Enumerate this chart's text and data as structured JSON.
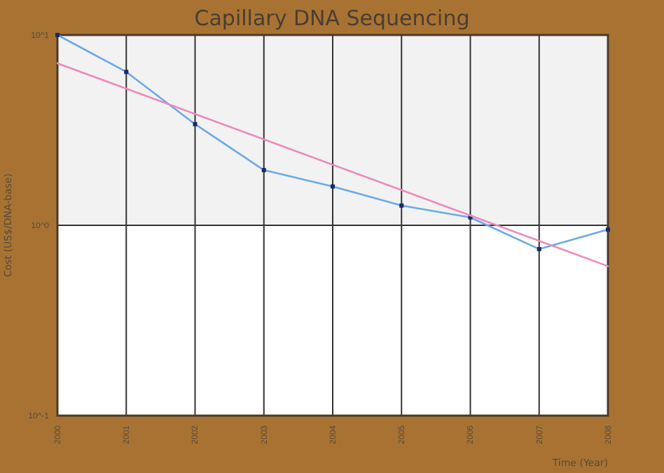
{
  "chart_data": {
    "type": "line",
    "title": "Capillary DNA Sequencing",
    "xlabel": "Time (Year)",
    "ylabel": "Cost (US$/DNA-base)",
    "x": [
      2000,
      2001,
      2002,
      2003,
      2004,
      2005,
      2006,
      2007,
      2008
    ],
    "series": [
      {
        "color": "#6aaae8",
        "values": [
          10,
          6.4,
          3.4,
          1.95,
          1.6,
          1.27,
          1.1,
          0.75,
          0.95
        ],
        "marker": "square"
      },
      {
        "type": "line",
        "color": "#ee88bb",
        "x": [
          2000,
          2008
        ],
        "values": [
          7.1,
          0.61
        ],
        "marker": "none"
      }
    ],
    "log": true,
    "xlim": [
      2000,
      2008
    ],
    "xticks": [
      2000,
      2001,
      2002,
      2003,
      2004,
      2005,
      2006,
      2007,
      2008
    ],
    "ylim": [
      0.1,
      10
    ],
    "yticks": [
      {
        "value": 10,
        "label": "10^1"
      },
      {
        "value": 1,
        "label": "10^0"
      },
      {
        "value": 0.1,
        "label": "10^-1"
      }
    ],
    "grid": true,
    "bands": [
      {
        "axis": "y",
        "from": 1,
        "to": 10,
        "color": "#f2f2f2"
      }
    ]
  }
}
